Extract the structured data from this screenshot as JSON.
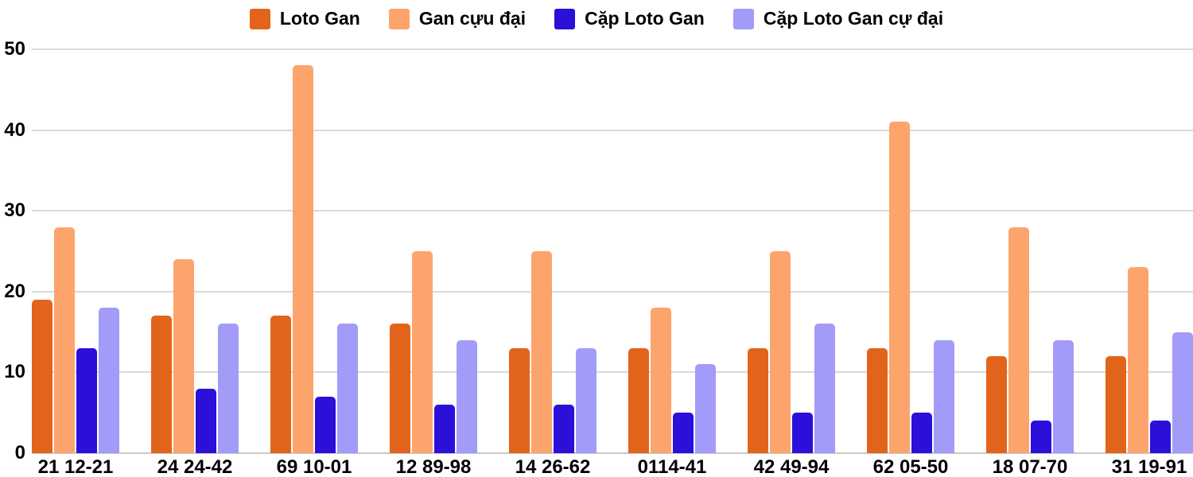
{
  "chart_data": {
    "type": "bar",
    "title": "",
    "xlabel": "",
    "ylabel": "",
    "categories": [
      "21 12-21",
      "24 24-42",
      "69 10-01",
      "12 89-98",
      "14 26-62",
      "0114-41",
      "42 49-94",
      "62 05-50",
      "18 07-70",
      "31 19-91"
    ],
    "series": [
      {
        "key": "loto-gan",
        "name": "Loto Gan",
        "color": "#e2641b",
        "values": [
          19,
          17,
          17,
          16,
          13,
          13,
          13,
          13,
          12,
          12
        ]
      },
      {
        "key": "gan-cuu-dai",
        "name": "Gan cựu đại",
        "color": "#fda46d",
        "values": [
          28,
          24,
          48,
          25,
          25,
          18,
          25,
          41,
          28,
          23
        ]
      },
      {
        "key": "cap-loto-gan",
        "name": "Cặp Loto Gan",
        "color": "#2a10d8",
        "values": [
          13,
          8,
          7,
          6,
          6,
          5,
          5,
          5,
          4,
          4
        ]
      },
      {
        "key": "cap-loto-gan-cu-dai",
        "name": "Cặp Loto Gan cự đại",
        "color": "#a29bf8",
        "values": [
          18,
          16,
          16,
          14,
          13,
          11,
          16,
          14,
          14,
          15
        ]
      }
    ],
    "y_axis": {
      "min": 0,
      "max": 50,
      "step": 10,
      "ticks": [
        0,
        10,
        20,
        30,
        40,
        50
      ]
    },
    "grid": true,
    "legend_position": "top",
    "colors": {
      "gridline": "#d9d9d9",
      "baseline": "#c9c9c9",
      "axis_text": "#000000",
      "background": "#ffffff"
    }
  }
}
